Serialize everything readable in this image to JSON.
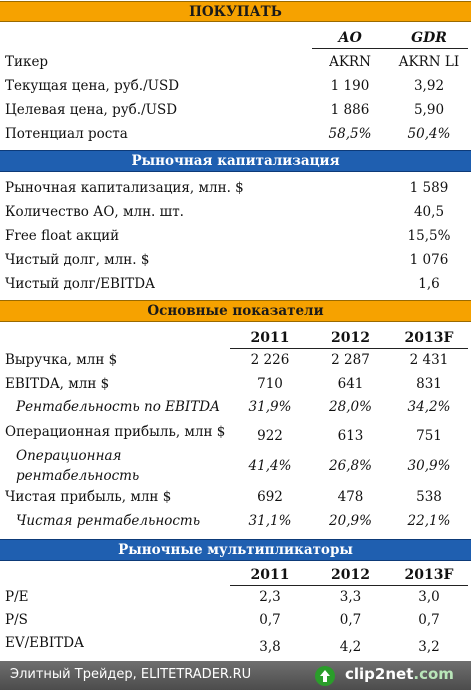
{
  "sections": {
    "buy": {
      "title": "ПОКУПАТЬ",
      "col_ao": "АО",
      "col_gdr": "GDR",
      "rows": [
        {
          "label": "Тикер",
          "ao": "AKRN",
          "gdr": "AKRN LI"
        },
        {
          "label": "Текущая цена, руб./USD",
          "ao": "1 190",
          "gdr": "3,92"
        },
        {
          "label": "Целевая цена, руб./USD",
          "ao": "1 886",
          "gdr": "5,90"
        },
        {
          "label": "Потенциал роста",
          "ao": "58,5%",
          "gdr": "50,4%"
        }
      ]
    },
    "market_cap": {
      "title": "Рыночная капитализация",
      "rows": [
        {
          "label": "Рыночная капитализация, млн. $",
          "value": "1 589"
        },
        {
          "label": "Количество АО, млн. шт.",
          "value": "40,5"
        },
        {
          "label": "Free float акций",
          "value": "15,5%"
        },
        {
          "label": "Чистый долг, млн. $",
          "value": "1 076"
        },
        {
          "label": "Чистый долг/EBITDA",
          "value": "1,6"
        }
      ]
    },
    "indicators": {
      "title": "Основные показатели",
      "years": [
        "2011",
        "2012",
        "2013F"
      ],
      "rows": [
        {
          "label": "Выручка, млн $",
          "v": [
            "2 226",
            "2 287",
            "2 431"
          ]
        },
        {
          "label": "EBITDA, млн $",
          "v": [
            "710",
            "641",
            "831"
          ]
        },
        {
          "label": "Рентабельность по EBITDA",
          "v": [
            "31,9%",
            "28,0%",
            "34,2%"
          ]
        },
        {
          "label": "Операционная прибыль, млн $",
          "v": [
            "922",
            "613",
            "751"
          ]
        },
        {
          "label1": "Операционная",
          "label2": "рентабельность",
          "v": [
            "41,4%",
            "26,8%",
            "30,9%"
          ]
        },
        {
          "label": "Чистая прибыль, млн $",
          "v": [
            "692",
            "478",
            "538"
          ]
        },
        {
          "label": "Чистая рентабельность",
          "v": [
            "31,1%",
            "20,9%",
            "22,1%"
          ]
        }
      ]
    },
    "multiples": {
      "title": "Рыночные мультипликаторы",
      "years": [
        "2011",
        "2012",
        "2013F"
      ],
      "rows": [
        {
          "label": "P/E",
          "v": [
            "2,3",
            "3,3",
            "3,0"
          ]
        },
        {
          "label": "P/S",
          "v": [
            "0,7",
            "0,7",
            "0,7"
          ]
        },
        {
          "label": "EV/EBITDA",
          "v": [
            "3,8",
            "4,2",
            "3,2"
          ]
        }
      ]
    }
  },
  "footer": {
    "caption": "Элитный Трейдер, ELITETRADER.RU",
    "brand_a": "clip2",
    "brand_b": "net",
    "brand_suffix": ".com"
  },
  "colors": {
    "orange_band": "#f6a200",
    "blue_band": "#1f5fb0"
  }
}
